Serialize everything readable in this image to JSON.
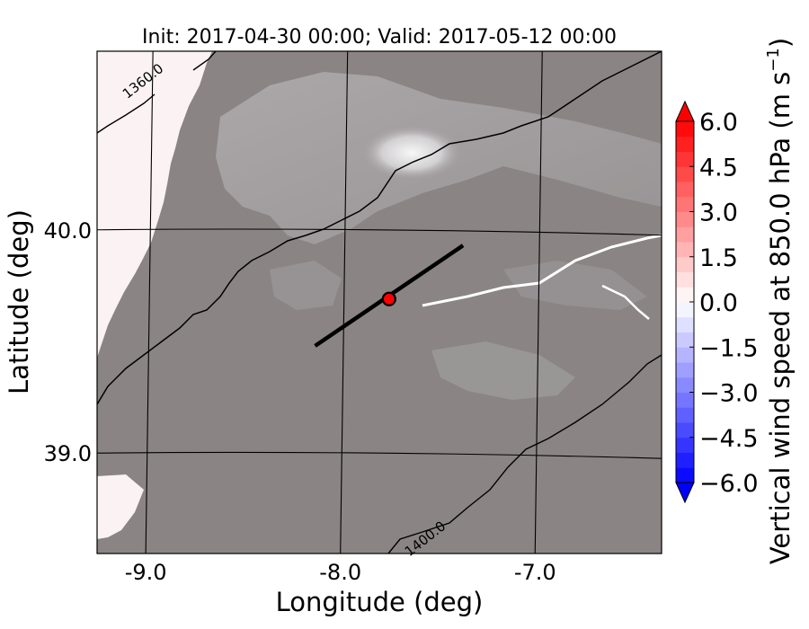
{
  "chart_data": {
    "type": "heatmap",
    "title": "Init: 2017-04-30 00:00; Valid: 2017-05-12 00:00",
    "xlabel": "Longitude (deg)",
    "ylabel": "Latitude (deg)",
    "xlim": [
      -9.25,
      -6.35
    ],
    "ylim": [
      38.55,
      40.8
    ],
    "xticks": [
      {
        "value": -9.0,
        "label": "-9.0"
      },
      {
        "value": -8.0,
        "label": "-8.0"
      },
      {
        "value": -7.0,
        "label": "-7.0"
      }
    ],
    "yticks": [
      {
        "value": 40.0,
        "label": "40.0"
      },
      {
        "value": 39.0,
        "label": "39.0"
      }
    ],
    "grid": true,
    "colorbar": {
      "label": "Vertical wind speed at 850.0 hPa (m s",
      "label_superscript": "−1",
      "label_end": ")",
      "vmin": -6.0,
      "vmax": 6.0,
      "extend": "both",
      "ticks": [
        {
          "value": 6.0,
          "label": "6.0"
        },
        {
          "value": 4.5,
          "label": "4.5"
        },
        {
          "value": 3.0,
          "label": "3.0"
        },
        {
          "value": 1.5,
          "label": "1.5"
        },
        {
          "value": 0.0,
          "label": "0.0"
        },
        {
          "value": -1.5,
          "label": "−1.5"
        },
        {
          "value": -3.0,
          "label": "−3.0"
        },
        {
          "value": -4.5,
          "label": "−4.5"
        },
        {
          "value": -6.0,
          "label": "−6.0"
        }
      ],
      "colors": {
        "max": "#ff0000",
        "mid": "#ffffff",
        "min": "#0000ff"
      }
    },
    "contour_labels": [
      {
        "text": "1360.0",
        "lon": -9.0,
        "lat": 40.65
      },
      {
        "text": "1400.0",
        "lon": -7.55,
        "lat": 38.6
      }
    ],
    "cross_section": {
      "start": {
        "lon": -8.13,
        "lat": 39.48
      },
      "end": {
        "lon": -7.37,
        "lat": 39.93
      },
      "point": {
        "lon": -7.75,
        "lat": 39.69
      },
      "point_color": "#ff0000"
    },
    "colors": {
      "terrain": "#8a8584",
      "ocean": "#fbf3f3",
      "ridge": "#c9c5c8",
      "peak": "#f2f2f2"
    }
  }
}
